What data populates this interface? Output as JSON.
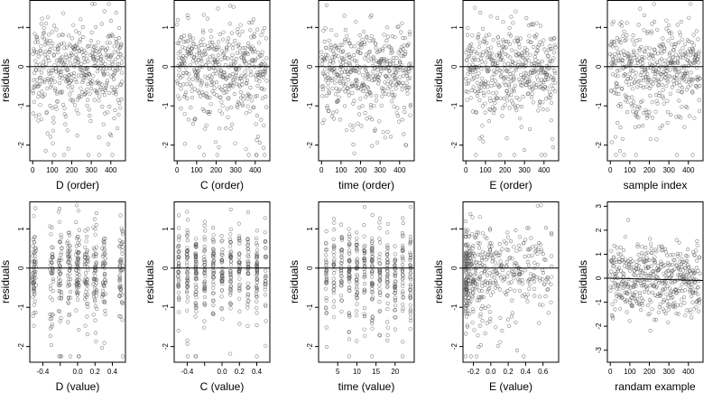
{
  "chart_data": [
    {
      "type": "scatter",
      "xlabel": "D (order)",
      "ylabel": "residuals",
      "xticks": [
        0,
        100,
        200,
        300,
        400
      ],
      "yticks": [
        -2,
        -1,
        0,
        1
      ],
      "xlim": [
        -15,
        475
      ],
      "ylim": [
        -2.4,
        1.7
      ],
      "hline": 0,
      "seed": 11,
      "points": {
        "n": 460,
        "xmode": "order",
        "sd": 0.72,
        "skew": "left"
      }
    },
    {
      "type": "scatter",
      "xlabel": "C (order)",
      "ylabel": "residuals",
      "xticks": [
        0,
        100,
        200,
        300,
        400
      ],
      "yticks": [
        -2,
        -1,
        0,
        1
      ],
      "xlim": [
        -15,
        475
      ],
      "ylim": [
        -2.4,
        1.7
      ],
      "hline": 0,
      "seed": 23,
      "points": {
        "n": 460,
        "xmode": "order",
        "sd": 0.72,
        "skew": "left"
      }
    },
    {
      "type": "scatter",
      "xlabel": "time (order)",
      "ylabel": "residuals",
      "xticks": [
        0,
        100,
        200,
        300,
        400
      ],
      "yticks": [
        -2,
        -1,
        0,
        1
      ],
      "xlim": [
        -15,
        475
      ],
      "ylim": [
        -2.4,
        1.7
      ],
      "hline": 0,
      "seed": 37,
      "points": {
        "n": 460,
        "xmode": "order",
        "sd": 0.72,
        "skew": "left"
      }
    },
    {
      "type": "scatter",
      "xlabel": "E (order)",
      "ylabel": "residuals",
      "xticks": [
        0,
        100,
        200,
        300,
        400
      ],
      "yticks": [
        -2,
        -1,
        0,
        1
      ],
      "xlim": [
        -15,
        475
      ],
      "ylim": [
        -2.4,
        1.7
      ],
      "hline": 0,
      "seed": 41,
      "points": {
        "n": 460,
        "xmode": "order",
        "sd": 0.72,
        "skew": "left"
      }
    },
    {
      "type": "scatter",
      "xlabel": "sample index",
      "ylabel": "residuals",
      "xticks": [
        0,
        100,
        200,
        300,
        400
      ],
      "yticks": [
        -2,
        -1,
        0,
        1
      ],
      "xlim": [
        -15,
        475
      ],
      "ylim": [
        -2.4,
        1.7
      ],
      "hline": 0,
      "seed": 53,
      "points": {
        "n": 460,
        "xmode": "order",
        "sd": 0.72,
        "skew": "left"
      }
    },
    {
      "type": "scatter",
      "xlabel": "D (value)",
      "ylabel": "residuals",
      "xticks": [
        -0.4,
        -0.2,
        0.0,
        0.2,
        0.4
      ],
      "xtick_labels": [
        "-0.4",
        "",
        "0.0",
        "0.2",
        "0.4"
      ],
      "yticks": [
        -2,
        -1,
        0,
        1
      ],
      "xlim": [
        -0.55,
        0.55
      ],
      "ylim": [
        -2.4,
        1.7
      ],
      "hline": 0,
      "seed": 67,
      "points": {
        "n": 460,
        "xmode": "clusters",
        "centers": [
          -0.5,
          -0.3,
          -0.2,
          -0.1,
          0.0,
          0.1,
          0.2,
          0.3,
          0.5
        ],
        "spread": 0.02,
        "sd": 0.72,
        "skew": "left"
      }
    },
    {
      "type": "scatter",
      "xlabel": "C (value)",
      "ylabel": "residuals",
      "xticks": [
        -0.4,
        -0.2,
        0.0,
        0.2,
        0.4
      ],
      "xtick_labels": [
        "-0.4",
        "",
        "0.0",
        "0.2",
        "0.4"
      ],
      "yticks": [
        -2,
        -1,
        0,
        1
      ],
      "xlim": [
        -0.55,
        0.55
      ],
      "ylim": [
        -2.4,
        1.7
      ],
      "hline": 0,
      "seed": 79,
      "points": {
        "n": 460,
        "xmode": "clusters",
        "centers": [
          -0.5,
          -0.4,
          -0.3,
          -0.2,
          -0.1,
          0.0,
          0.1,
          0.2,
          0.3,
          0.4,
          0.5
        ],
        "spread": 0.006,
        "sd": 0.72,
        "skew": "left"
      }
    },
    {
      "type": "scatter",
      "xlabel": "time (value)",
      "ylabel": "residuals",
      "xticks": [
        5,
        10,
        15,
        20
      ],
      "yticks": [
        -2,
        -1,
        0,
        1
      ],
      "xlim": [
        0,
        25
      ],
      "ylim": [
        -2.4,
        1.7
      ],
      "hline": 0,
      "seed": 83,
      "points": {
        "n": 460,
        "xmode": "clusters",
        "centers": [
          2,
          4,
          6,
          8,
          10,
          12,
          14,
          16,
          18,
          20,
          22,
          24
        ],
        "spread": 0.12,
        "sd": 0.72,
        "skew": "left"
      }
    },
    {
      "type": "scatter",
      "xlabel": "E (value)",
      "ylabel": "residuals",
      "xticks": [
        -0.2,
        0.0,
        0.2,
        0.4,
        0.6
      ],
      "xtick_labels": [
        "-0.2",
        "0.0",
        "0.2",
        "0.4",
        "0.6"
      ],
      "yticks": [
        -2,
        -1,
        0,
        1
      ],
      "xlim": [
        -0.32,
        0.78
      ],
      "ylim": [
        -2.4,
        1.7
      ],
      "hline": 0,
      "seed": 97,
      "points": {
        "n": 460,
        "xmode": "skewed",
        "xmin": -0.29,
        "xmax": 0.7,
        "sd": 0.72,
        "skew": "left"
      }
    },
    {
      "type": "scatter",
      "xlabel": "randam example",
      "ylabel": "residuals",
      "xticks": [
        0,
        100,
        200,
        300,
        400
      ],
      "yticks": [
        -3,
        -2,
        -1,
        0,
        1,
        2,
        3
      ],
      "xlim": [
        -15,
        475
      ],
      "ylim": [
        -3.5,
        3.2
      ],
      "hline": 0,
      "hline_slope": -0.0002,
      "seed": 101,
      "points": {
        "n": 460,
        "xmode": "order",
        "sd": 1.0,
        "skew": "none"
      }
    }
  ],
  "style": {
    "point_stroke": "#555555",
    "axis_color": "#000000",
    "line_color": "#000000"
  }
}
